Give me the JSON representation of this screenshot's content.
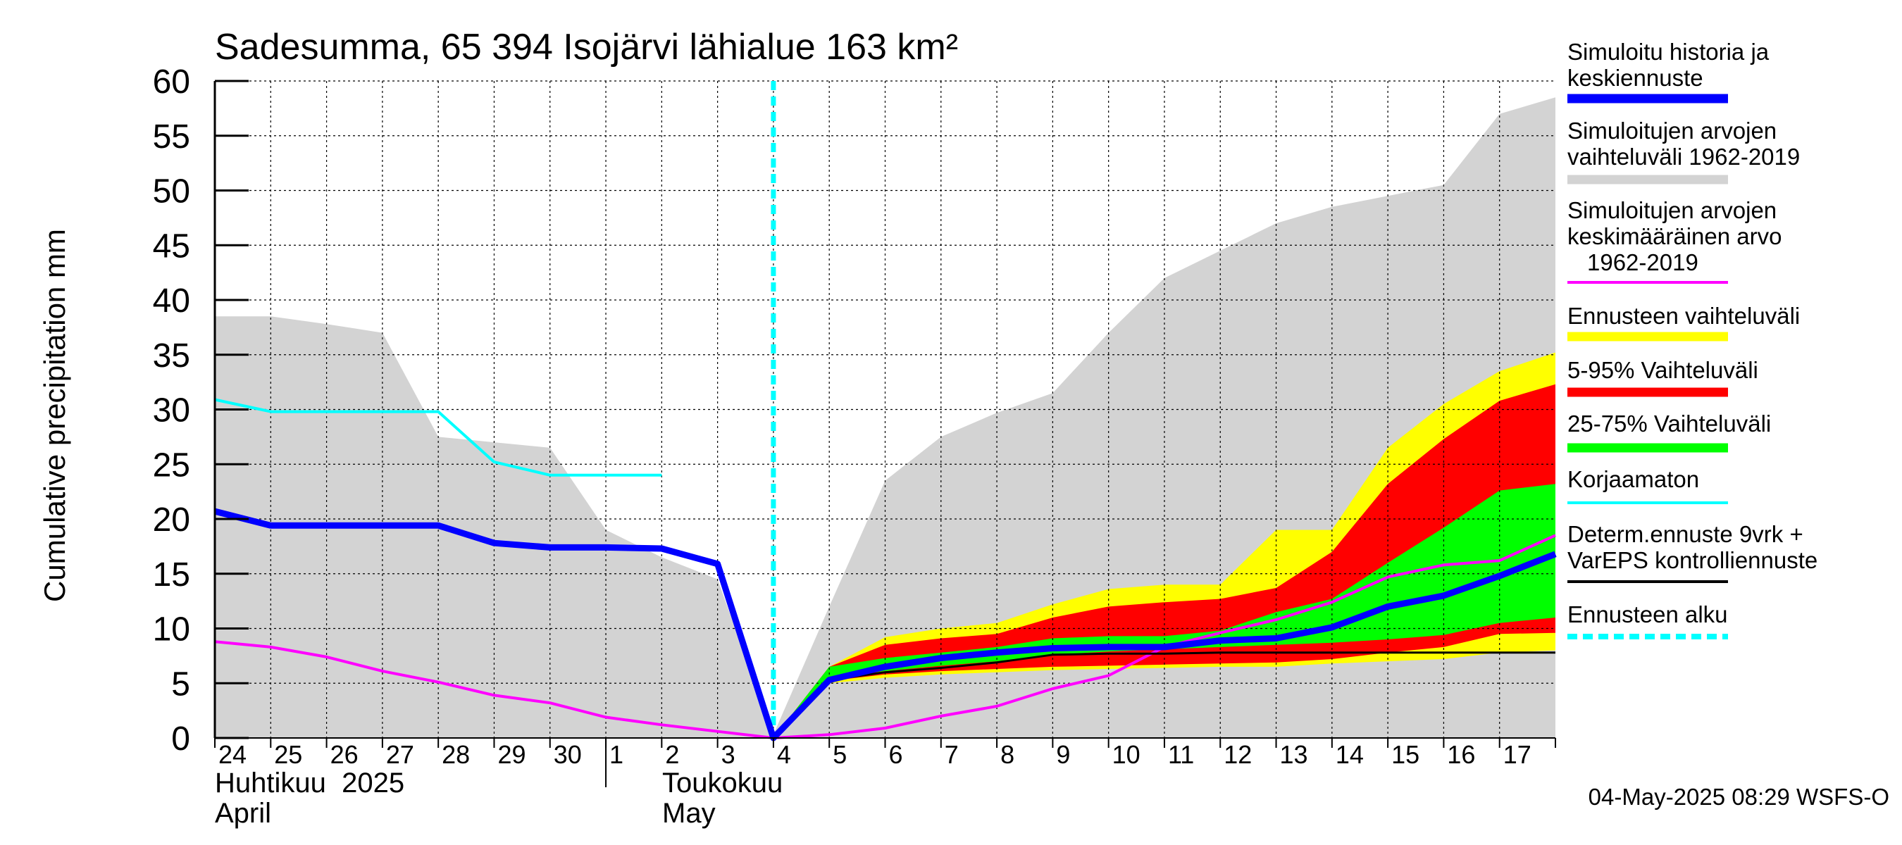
{
  "chart_data": {
    "type": "area",
    "title": "Sadesumma, 65 394 Isojärvi lähialue 163 km²",
    "ylabel": "Cumulative precipitation   mm",
    "ylim": [
      0,
      60
    ],
    "yticks": [
      0,
      5,
      10,
      15,
      20,
      25,
      30,
      35,
      40,
      45,
      50,
      55,
      60
    ],
    "x_day_index_range": [
      0,
      24
    ],
    "x_tick_labels": [
      "24",
      "25",
      "26",
      "27",
      "28",
      "29",
      "30",
      "1",
      "2",
      "3",
      "4",
      "5",
      "6",
      "7",
      "8",
      "9",
      "10",
      "11",
      "12",
      "13",
      "14",
      "15",
      "16",
      "17"
    ],
    "month_labels": {
      "april_fi": "Huhtikuu  2025",
      "april_en": "April",
      "may_fi": "Toukokuu",
      "may_en": "May"
    },
    "forecast_start_index": 10,
    "series": [
      {
        "name": "Simuloitujen arvojen vaihteluväli 1962-2019",
        "kind": "band",
        "color": "#d3d3d3",
        "x": [
          0,
          1,
          2,
          3,
          4,
          5,
          6,
          7,
          8,
          9,
          10,
          11,
          12,
          13,
          14,
          15,
          16,
          17,
          18,
          19,
          20,
          21,
          22,
          23,
          24
        ],
        "upper": [
          38.5,
          38.5,
          37.8,
          37,
          27.5,
          27,
          26.5,
          19,
          16.5,
          14.5,
          0.3,
          12,
          23.5,
          27.5,
          29.7,
          31.5,
          37,
          42,
          44.5,
          47,
          48.5,
          49.5,
          50.5,
          57,
          58.5
        ],
        "lower": [
          0,
          0,
          0,
          0,
          0,
          0,
          0,
          0,
          0,
          0,
          0,
          0,
          0,
          0,
          0,
          0,
          0,
          0,
          0,
          0,
          0,
          0,
          0,
          0,
          0
        ]
      },
      {
        "name": "Ennusteen vaihteluväli",
        "kind": "band",
        "color": "#ffff00",
        "x": [
          10,
          11,
          12,
          13,
          14,
          15,
          16,
          17,
          18,
          19,
          20,
          21,
          22,
          23,
          24
        ],
        "upper": [
          0,
          6.5,
          9.2,
          10,
          10.5,
          12.2,
          13.6,
          14,
          14,
          19,
          19,
          26.5,
          30.5,
          33.5,
          35.2
        ],
        "lower": [
          0,
          5,
          5.5,
          5.8,
          6,
          6.2,
          6.3,
          6.4,
          6.5,
          6.5,
          6.8,
          7,
          7.2,
          7.8,
          8
        ]
      },
      {
        "name": "5-95% Vaihteluväli",
        "kind": "band",
        "color": "#ff0000",
        "x": [
          10,
          11,
          12,
          13,
          14,
          15,
          16,
          17,
          18,
          19,
          20,
          21,
          22,
          23,
          24
        ],
        "upper": [
          0,
          6.5,
          8.5,
          9.1,
          9.5,
          11,
          12,
          12.4,
          12.7,
          13.7,
          17,
          23.2,
          27.3,
          30.8,
          32.3
        ],
        "lower": [
          0,
          5.2,
          5.8,
          6.1,
          6.3,
          6.5,
          6.6,
          6.7,
          6.8,
          6.9,
          7.2,
          7.8,
          8.3,
          9.5,
          9.6
        ]
      },
      {
        "name": "25-75% Vaihteluväli",
        "kind": "band",
        "color": "#00ff00",
        "x": [
          10,
          11,
          12,
          13,
          14,
          15,
          16,
          17,
          18,
          19,
          20,
          21,
          22,
          23,
          24
        ],
        "upper": [
          0,
          6.5,
          7.3,
          7.8,
          8.3,
          9.1,
          9.3,
          9.3,
          9.8,
          11.5,
          12.7,
          16,
          19.2,
          22.6,
          23.2
        ],
        "lower": [
          0,
          5.5,
          6.1,
          6.6,
          7,
          7.6,
          7.9,
          8.1,
          8.3,
          8.5,
          8.7,
          9,
          9.4,
          10.5,
          11
        ]
      },
      {
        "name": "Simuloitujen arvojen keskimääräinen arvo 1962-2019",
        "kind": "line",
        "color": "#ff00ff",
        "x": [
          0,
          1,
          2,
          3,
          4,
          5,
          6,
          7,
          8,
          9,
          10,
          11,
          12,
          13,
          14,
          15,
          16,
          17,
          18,
          19,
          20,
          21,
          22,
          23,
          24
        ],
        "values": [
          8.8,
          8.3,
          7.4,
          6.1,
          5.1,
          3.9,
          3.2,
          1.9,
          1.2,
          0.6,
          0,
          0.3,
          0.9,
          2,
          2.9,
          4.5,
          5.7,
          8.3,
          9.6,
          10.8,
          12.4,
          14.7,
          15.8,
          16.2,
          18.5
        ]
      },
      {
        "name": "Korjaamaton",
        "kind": "line",
        "color": "#00ffff",
        "x": [
          0,
          1,
          2,
          3,
          4,
          5,
          6,
          7,
          8
        ],
        "values": [
          30.9,
          29.8,
          29.8,
          29.8,
          29.8,
          25.2,
          24,
          24,
          24
        ]
      },
      {
        "name": "Determ.ennuste 9vrk + VarEPS kontrolliennuste",
        "kind": "line",
        "color": "#000000",
        "x": [
          10,
          11,
          12,
          13,
          14,
          15,
          16,
          17,
          18,
          19,
          20,
          21,
          22,
          23,
          24
        ],
        "values": [
          0,
          5.3,
          6,
          6.4,
          6.9,
          7.6,
          7.7,
          7.7,
          7.8,
          7.8,
          7.8,
          7.8,
          7.8,
          7.8,
          7.8
        ]
      },
      {
        "name": "Simuloitu historia ja keskiennuste",
        "kind": "line",
        "color": "#0000ff",
        "x": [
          0,
          1,
          2,
          3,
          4,
          5,
          6,
          7,
          8,
          9,
          10,
          11,
          12,
          13,
          14,
          15,
          16,
          17,
          18,
          19,
          20,
          21,
          22,
          23,
          24
        ],
        "values": [
          20.7,
          19.4,
          19.4,
          19.4,
          19.4,
          17.8,
          17.4,
          17.4,
          17.3,
          15.9,
          0,
          5.3,
          6.5,
          7.3,
          7.8,
          8.2,
          8.3,
          8.3,
          8.9,
          9.1,
          10.1,
          12,
          13,
          14.8,
          16.8
        ]
      }
    ],
    "legend": [
      {
        "label": "Simuloitu historia ja keskiennuste",
        "color": "#0000ff",
        "style": "thick"
      },
      {
        "label": "Simuloitujen arvojen vaihteluväli 1962-2019",
        "color": "#d3d3d3",
        "style": "thick"
      },
      {
        "label": "Simuloitujen arvojen keskimääräinen arvo    1962-2019",
        "color": "#ff00ff",
        "style": "line"
      },
      {
        "label": "Ennusteen vaihteluväli",
        "color": "#ffff00",
        "style": "thick"
      },
      {
        "label": "5-95% Vaihteluväli",
        "color": "#ff0000",
        "style": "thick"
      },
      {
        "label": "25-75% Vaihteluväli",
        "color": "#00ff00",
        "style": "thick"
      },
      {
        "label": "Korjaamaton",
        "color": "#00ffff",
        "style": "line"
      },
      {
        "label": "Determ.ennuste 9vrk + VarEPS kontrolliennuste",
        "color": "#000000",
        "style": "line"
      },
      {
        "label": "Ennusteen alku",
        "color": "#00ffff",
        "style": "dashed"
      }
    ],
    "footer": "04-May-2025 08:29 WSFS-O"
  }
}
